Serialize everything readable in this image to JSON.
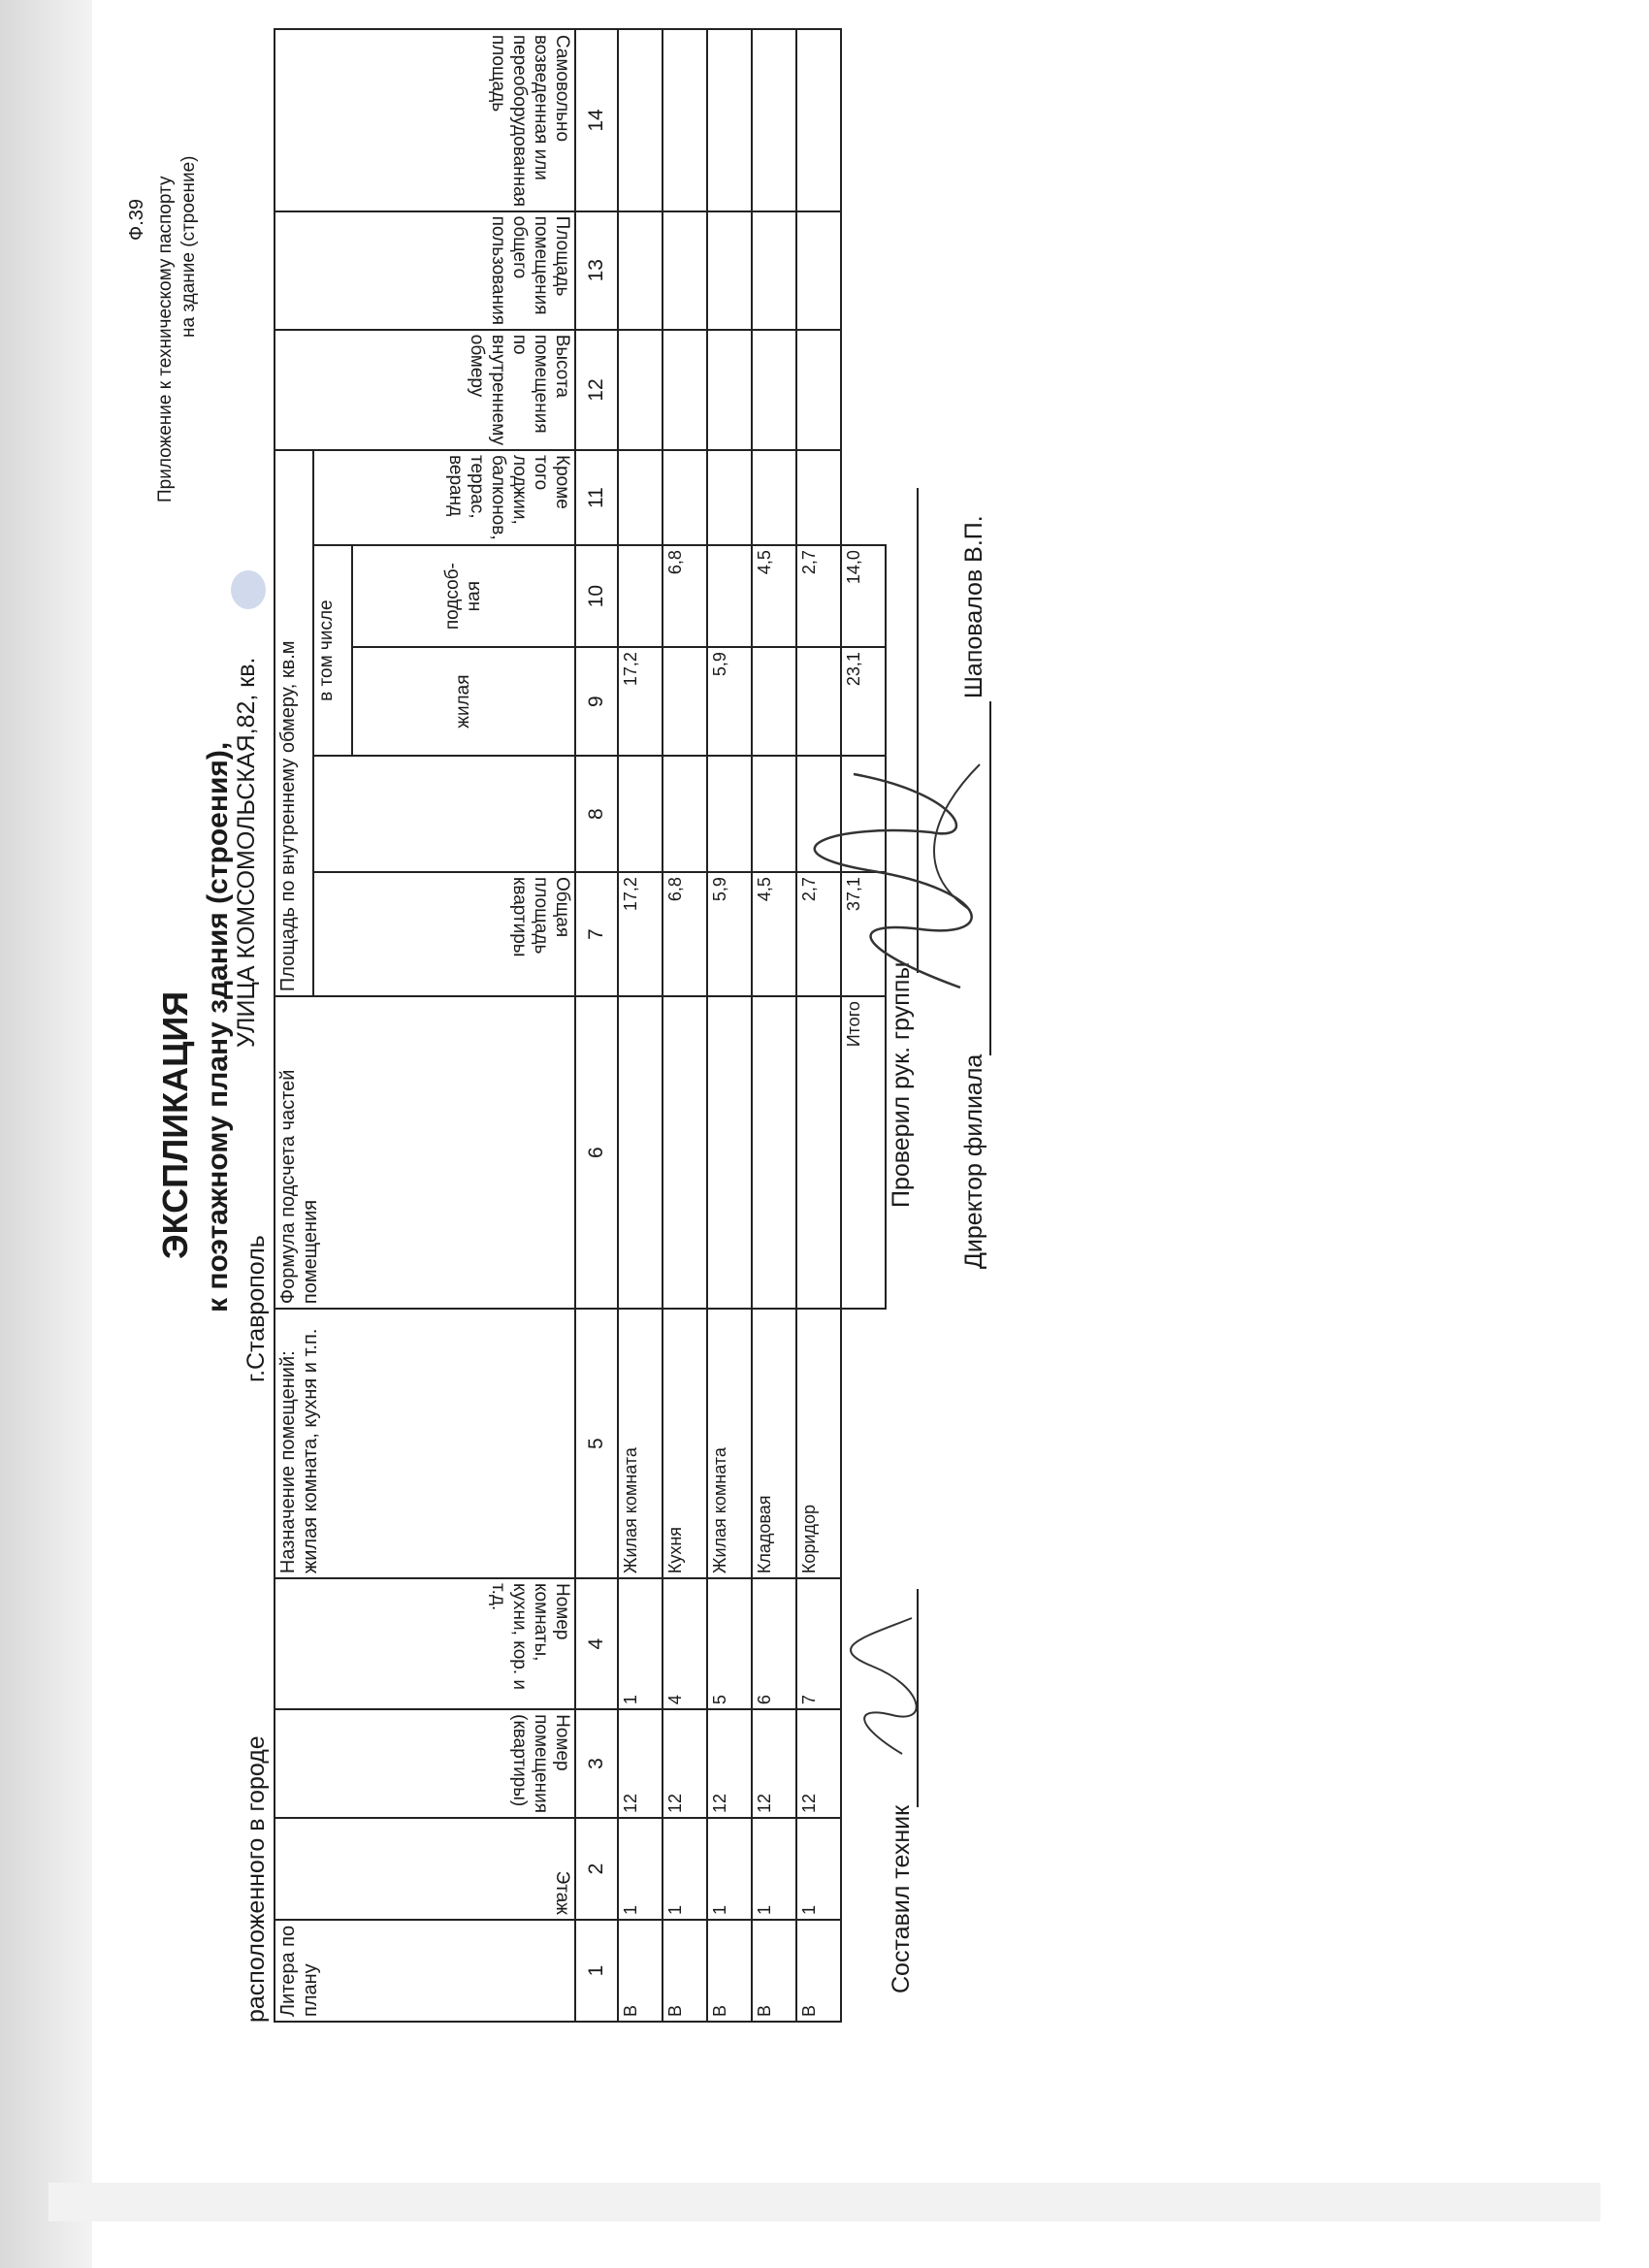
{
  "form_number": "Ф.39",
  "appendix_line1": "Приложение к техническому паспорту",
  "appendix_line2": "на здание (строение)",
  "title": "ЭКСПЛИКАЦИЯ",
  "subtitle": "к поэтажному плану здания (строения),",
  "location_label": "расположенного в городе",
  "city": "г.Ставрополь",
  "address": "УЛИЦА КОМСОМОЛЬСКАЯ,82, кв.",
  "table": {
    "headers": {
      "liter": "Литера по плану",
      "floor": "Этаж",
      "premises_no": "Номер помещения (квартиры)",
      "room_no": "Номер комнаты, кухни, кор. и т.д.",
      "purpose": "Назначение помещений: жилая комната, кухня и т.п.",
      "formula": "Формула подсчета частей помещения",
      "area_group": "Площадь по внутреннему обмеру, кв.м",
      "total_area": "Общая площадь квартиры",
      "including": "в том числе",
      "living": "жилая",
      "auxiliary": "подсоб-ная",
      "balconies": "Кроме того лоджии, балконов, террас, веранд",
      "height": "Высота помещения по внутреннему обмеру",
      "common_area": "Площадь помещения общего пользования",
      "unauthorized": "Самовольно возведенная или переоборудованная площадь"
    },
    "column_numbers": [
      "1",
      "2",
      "3",
      "4",
      "5",
      "6",
      "7",
      "8",
      "9",
      "10",
      "11",
      "12",
      "13",
      "14"
    ],
    "rows": [
      [
        "В",
        "1",
        "12",
        "1",
        "Жилая комната",
        "",
        "17,2",
        "",
        "17,2",
        "",
        "",
        "",
        "",
        ""
      ],
      [
        "В",
        "1",
        "12",
        "4",
        "Кухня",
        "",
        "6,8",
        "",
        "",
        "6,8",
        "",
        "",
        "",
        ""
      ],
      [
        "В",
        "1",
        "12",
        "5",
        "Жилая комната",
        "",
        "5,9",
        "",
        "5,9",
        "",
        "",
        "",
        "",
        ""
      ],
      [
        "В",
        "1",
        "12",
        "6",
        "Кладовая",
        "",
        "4,5",
        "",
        "",
        "4,5",
        "",
        "",
        "",
        ""
      ],
      [
        "В",
        "1",
        "12",
        "7",
        "Коридор",
        "",
        "2,7",
        "",
        "",
        "2,7",
        "",
        "",
        "",
        ""
      ]
    ],
    "total": {
      "label": "Итого",
      "total_area": "37,1",
      "living": "23,1",
      "auxiliary": "14,0"
    }
  },
  "footer": {
    "compiled_by": "Составил техник",
    "checked_by": "Проверил рук. группы",
    "director": "Директор филиала",
    "director_name": "Шаповалов В.П."
  }
}
